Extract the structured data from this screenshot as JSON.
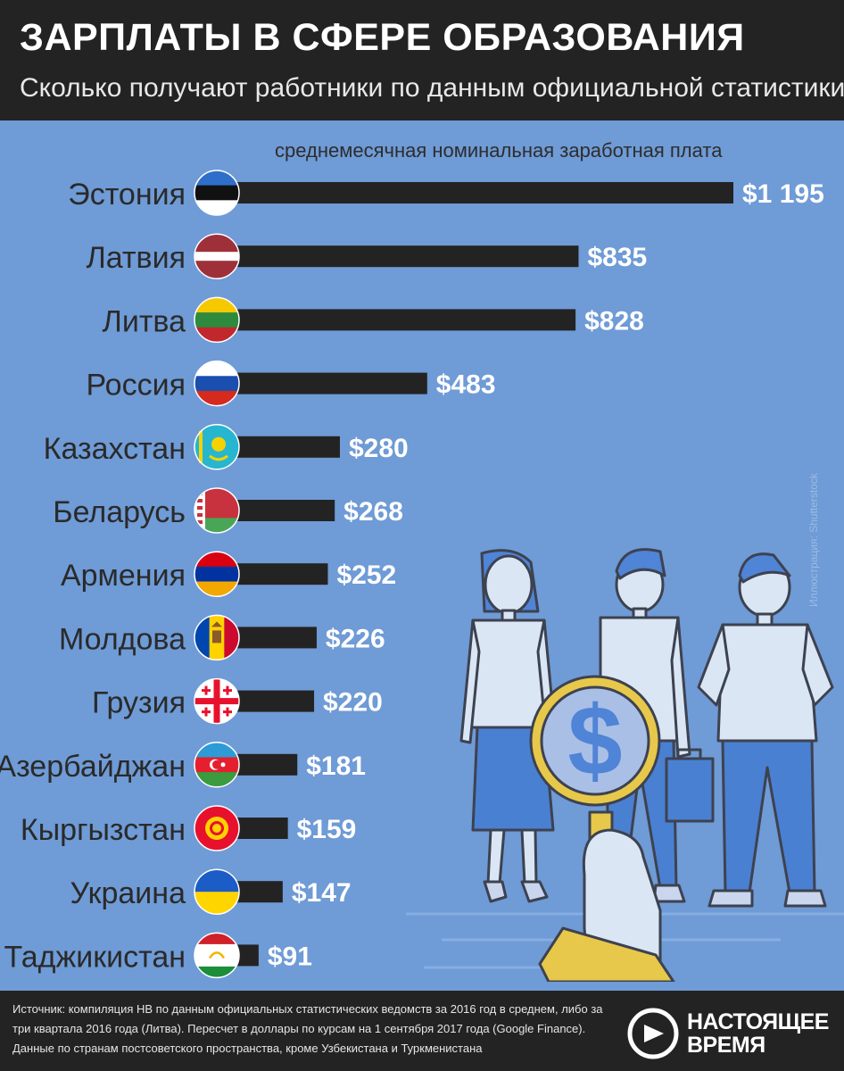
{
  "header": {
    "title": "ЗАРПЛАТЫ В СФЕРЕ ОБРАЗОВАНИЯ",
    "subtitle": "Сколько получают работники по данным официальной статистики"
  },
  "chart_caption": "среднемесячная номинальная заработная плата",
  "chart_data": {
    "type": "bar",
    "orientation": "horizontal",
    "title": "среднемесячная номинальная заработная плата",
    "categories": [
      "Эстония",
      "Латвия",
      "Литва",
      "Россия",
      "Казахстан",
      "Беларусь",
      "Армения",
      "Молдова",
      "Грузия",
      "Азербайджан",
      "Кыргызстан",
      "Украина",
      "Таджикистан"
    ],
    "values": [
      1195,
      835,
      828,
      483,
      280,
      268,
      252,
      226,
      220,
      181,
      159,
      147,
      91
    ],
    "value_labels": [
      "$1 195",
      "$835",
      "$828",
      "$483",
      "$280",
      "$268",
      "$252",
      "$226",
      "$220",
      "$181",
      "$159",
      "$147",
      "$91"
    ],
    "unit": "USD",
    "grid": false,
    "legend": "none",
    "bar_color": "#232323",
    "flags": [
      "estonia-flag-icon",
      "latvia-flag-icon",
      "lithuania-flag-icon",
      "russia-flag-icon",
      "kazakhstan-flag-icon",
      "belarus-flag-icon",
      "armenia-flag-icon",
      "moldova-flag-icon",
      "georgia-flag-icon",
      "azerbaijan-flag-icon",
      "kyrgyzstan-flag-icon",
      "ukraine-flag-icon",
      "tajikistan-flag-icon"
    ]
  },
  "credit": "Иллюстрация: Shutterstock",
  "footer": {
    "source_lines": [
      "Источник: компиляция НВ по данным официальных статистических ведомств за 2016 год в среднем, либо за",
      "три квартала 2016 года (Литва). Пересчет в доллары по курсам на 1 сентября 2017 года (Google Finance).",
      "Данные по странам постсоветского пространства, кроме Узбекистана и Туркменистана"
    ],
    "logo_line1": "НАСТОЯЩЕЕ",
    "logo_line2": "ВРЕМЯ"
  },
  "colors": {
    "background": "#6f9bd6",
    "header": "#232323",
    "bar": "#232323",
    "value_text": "#ffffff",
    "label_text": "#2a2a2a"
  }
}
